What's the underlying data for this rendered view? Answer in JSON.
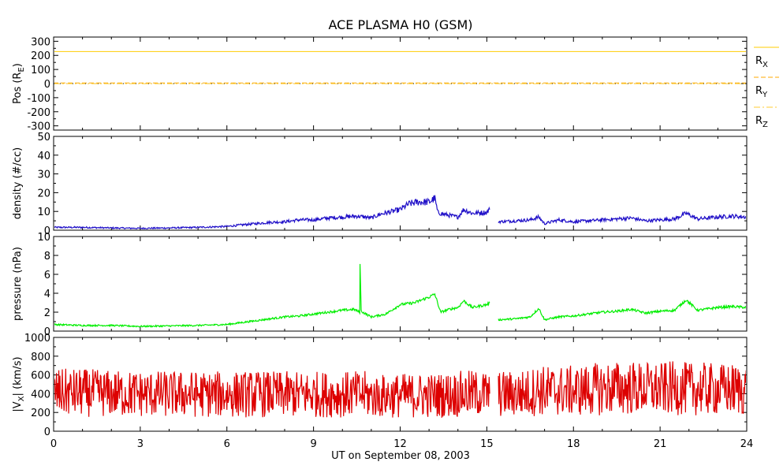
{
  "chart_data": {
    "title": "ACE PLASMA H0 (GSM)",
    "xlabel": "UT on September 08, 2003",
    "xlim": [
      0,
      24
    ],
    "xticks": [
      "0",
      "3",
      "6",
      "9",
      "12",
      "15",
      "18",
      "21",
      "24"
    ],
    "panels": [
      {
        "type": "line",
        "ylabel": "Pos (R",
        "ylabel_sub": "E",
        "ylabel_end": ")",
        "ylim": [
          -330,
          330
        ],
        "yticks": [
          "300",
          "200",
          "100",
          "0",
          "-100",
          "-200",
          "-300"
        ],
        "tick_values": [
          300,
          200,
          100,
          0,
          -100,
          -200,
          -300
        ],
        "series": [
          {
            "name": "R",
            "name_sub": "X",
            "color": "#ffcc00",
            "dash": "solid",
            "x": [
              0,
              24
            ],
            "y": [
              227,
              227
            ]
          },
          {
            "name": "R",
            "name_sub": "Y",
            "color": "#ffaa00",
            "dash": "dashed",
            "x": [
              0,
              24
            ],
            "y": [
              4,
              4
            ]
          },
          {
            "name": "R",
            "name_sub": "Z",
            "color": "#ffcc33",
            "dash": "dashdot",
            "x": [
              0,
              24
            ],
            "y": [
              -1,
              -1
            ]
          }
        ],
        "extra": {
          "dotted_zero": true
        }
      },
      {
        "type": "line",
        "ylabel": "density (#/cc)",
        "ylim": [
          0,
          50
        ],
        "yticks": [
          "50",
          "40",
          "30",
          "20",
          "10",
          "0"
        ],
        "tick_values": [
          50,
          40,
          30,
          20,
          10,
          0
        ],
        "series": [
          {
            "color": "#2010c8",
            "x": [
              0,
              1,
              2,
              3,
              4,
              5,
              6,
              6.5,
              7,
              7.5,
              8,
              8.5,
              9,
              9.5,
              10,
              10.5,
              10.8,
              11,
              11.3,
              11.6,
              12,
              12.3,
              12.6,
              13,
              13.2,
              13.3,
              13.5,
              14,
              14.2,
              14.5,
              15,
              15.1
            ],
            "y": [
              1.5,
              1.5,
              1.2,
              1.0,
              1.2,
              1.5,
              2.0,
              2.8,
              3.5,
              4.2,
              4.5,
              5.5,
              5.5,
              6.5,
              7.0,
              7.5,
              7.0,
              6.5,
              8.5,
              9.5,
              11.0,
              14.0,
              15.0,
              15.0,
              17.0,
              9.5,
              8.5,
              7.0,
              11.0,
              9.0,
              9.5,
              11.0
            ]
          },
          {
            "color": "#2010c8",
            "x": [
              15.4,
              16,
              16.5,
              16.8,
              17,
              17.5,
              18,
              18.5,
              19,
              19.5,
              20,
              20.5,
              21,
              21.5,
              21.9,
              22.3,
              23,
              23.5,
              24
            ],
            "y": [
              4.5,
              5.0,
              5.5,
              7.0,
              3.5,
              5.5,
              4.5,
              5.0,
              5.5,
              6.0,
              6.5,
              5.0,
              5.5,
              6.0,
              9.0,
              6.0,
              7.0,
              7.5,
              7.0
            ]
          }
        ]
      },
      {
        "type": "line",
        "ylabel": "pressure (nPa)",
        "ylim": [
          0,
          10
        ],
        "yticks": [
          "10",
          "8",
          "6",
          "4",
          "2",
          "0"
        ],
        "tick_values": [
          10,
          8,
          6,
          4,
          2,
          0
        ],
        "series": [
          {
            "color": "#00ee00",
            "x": [
              0,
              1,
              2,
              3,
              4,
              5,
              6,
              6.5,
              7,
              7.5,
              8,
              8.5,
              9,
              9.5,
              10,
              10.4,
              10.6,
              10.61,
              10.65,
              10.7,
              11,
              11.5,
              12,
              12.5,
              13,
              13.2,
              13.4,
              13.7,
              14,
              14.2,
              14.5,
              15,
              15.1
            ],
            "y": [
              0.7,
              0.6,
              0.6,
              0.5,
              0.55,
              0.6,
              0.7,
              0.9,
              1.1,
              1.3,
              1.5,
              1.6,
              1.8,
              2.0,
              2.2,
              2.3,
              2.0,
              7.0,
              2.2,
              2.0,
              1.5,
              1.8,
              2.8,
              3.0,
              3.6,
              3.9,
              2.0,
              2.3,
              2.5,
              3.2,
              2.5,
              2.8,
              3.0
            ]
          },
          {
            "color": "#00ee00",
            "x": [
              15.4,
              16,
              16.5,
              16.8,
              17,
              17.5,
              18,
              18.5,
              19,
              19.5,
              20,
              20.5,
              21,
              21.5,
              21.9,
              22.3,
              23,
              23.5,
              24
            ],
            "y": [
              1.2,
              1.3,
              1.5,
              2.4,
              1.2,
              1.5,
              1.6,
              1.8,
              2.0,
              2.1,
              2.3,
              1.9,
              2.1,
              2.2,
              3.3,
              2.2,
              2.5,
              2.6,
              2.5
            ]
          }
        ]
      },
      {
        "type": "line",
        "ylabel": "|V",
        "ylabel_sub": "X",
        "ylabel_end": "| (km/s)",
        "ylim": [
          0,
          1000
        ],
        "yticks": [
          "1000",
          "800",
          "600",
          "400",
          "200",
          "0"
        ],
        "tick_values": [
          1000,
          800,
          600,
          400,
          200,
          0
        ],
        "series": [
          {
            "color": "#dd0000",
            "x": [
              0,
              1,
              2,
              3,
              4,
              5,
              6,
              7,
              8,
              9,
              10,
              10.8,
              10.9,
              11.5,
              12,
              13,
              13.5,
              14,
              14.5,
              15,
              15.1
            ],
            "y": [
              410,
              410,
              400,
              398,
              395,
              395,
              392,
              395,
              392,
              395,
              392,
              395,
              375,
              375,
              380,
              380,
              385,
              395,
              400,
              400,
              400
            ]
          },
          {
            "color": "#dd0000",
            "x": [
              15.4,
              16,
              16.5,
              16.8,
              17,
              17.5,
              18,
              18.5,
              19,
              19.5,
              20,
              20.5,
              21,
              21.5,
              22,
              22.5,
              23,
              24
            ],
            "y": [
              395,
              400,
              410,
              445,
              430,
              430,
              430,
              440,
              455,
              460,
              460,
              455,
              450,
              460,
              450,
              450,
              445,
              445
            ]
          }
        ]
      }
    ]
  }
}
